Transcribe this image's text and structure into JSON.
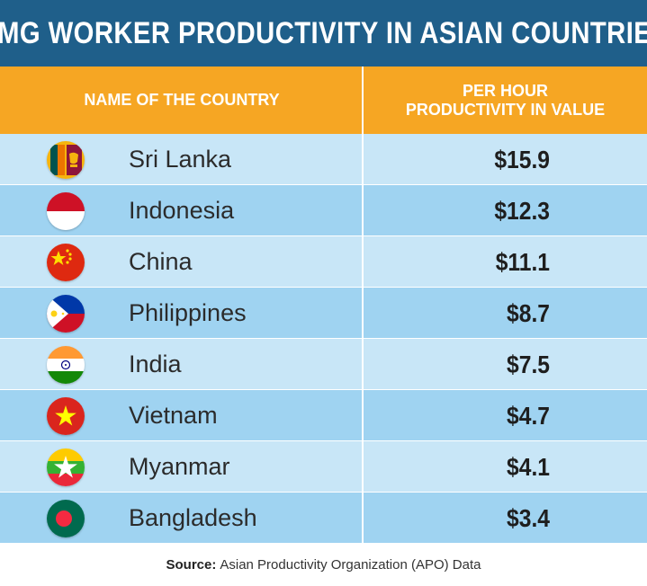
{
  "title": "RMG WORKER PRODUCTIVITY IN ASIAN COUNTRIES",
  "header": {
    "country_col": "NAME OF THE COUNTRY",
    "value_col_line1": "PER HOUR",
    "value_col_line2": "PRODUCTIVITY IN VALUE"
  },
  "colors": {
    "title_bg": "#1f5f8a",
    "header_bg": "#f6a623",
    "row_light": "#c8e6f7",
    "row_dark": "#9fd3f1"
  },
  "chart_data": {
    "type": "table",
    "title": "RMG WORKER PRODUCTIVITY IN ASIAN COUNTRIES",
    "columns": [
      "NAME OF THE COUNTRY",
      "PER HOUR PRODUCTIVITY IN VALUE"
    ],
    "rows": [
      {
        "country": "Sri Lanka",
        "value_label": "$15.9",
        "value": 15.9,
        "flag_icon": "sri-lanka-flag-icon"
      },
      {
        "country": "Indonesia",
        "value_label": "$12.3",
        "value": 12.3,
        "flag_icon": "indonesia-flag-icon"
      },
      {
        "country": "China",
        "value_label": "$11.1",
        "value": 11.1,
        "flag_icon": "china-flag-icon"
      },
      {
        "country": "Philippines",
        "value_label": "$8.7",
        "value": 8.7,
        "flag_icon": "philippines-flag-icon"
      },
      {
        "country": "India",
        "value_label": "$7.5",
        "value": 7.5,
        "flag_icon": "india-flag-icon"
      },
      {
        "country": "Vietnam",
        "value_label": "$4.7",
        "value": 4.7,
        "flag_icon": "vietnam-flag-icon"
      },
      {
        "country": "Myanmar",
        "value_label": "$4.1",
        "value": 4.1,
        "flag_icon": "myanmar-flag-icon"
      },
      {
        "country": "Bangladesh",
        "value_label": "$3.4",
        "value": 3.4,
        "flag_icon": "bangladesh-flag-icon"
      }
    ]
  },
  "source": {
    "label": "Source:",
    "text": "Asian Productivity Organization (APO) Data"
  }
}
